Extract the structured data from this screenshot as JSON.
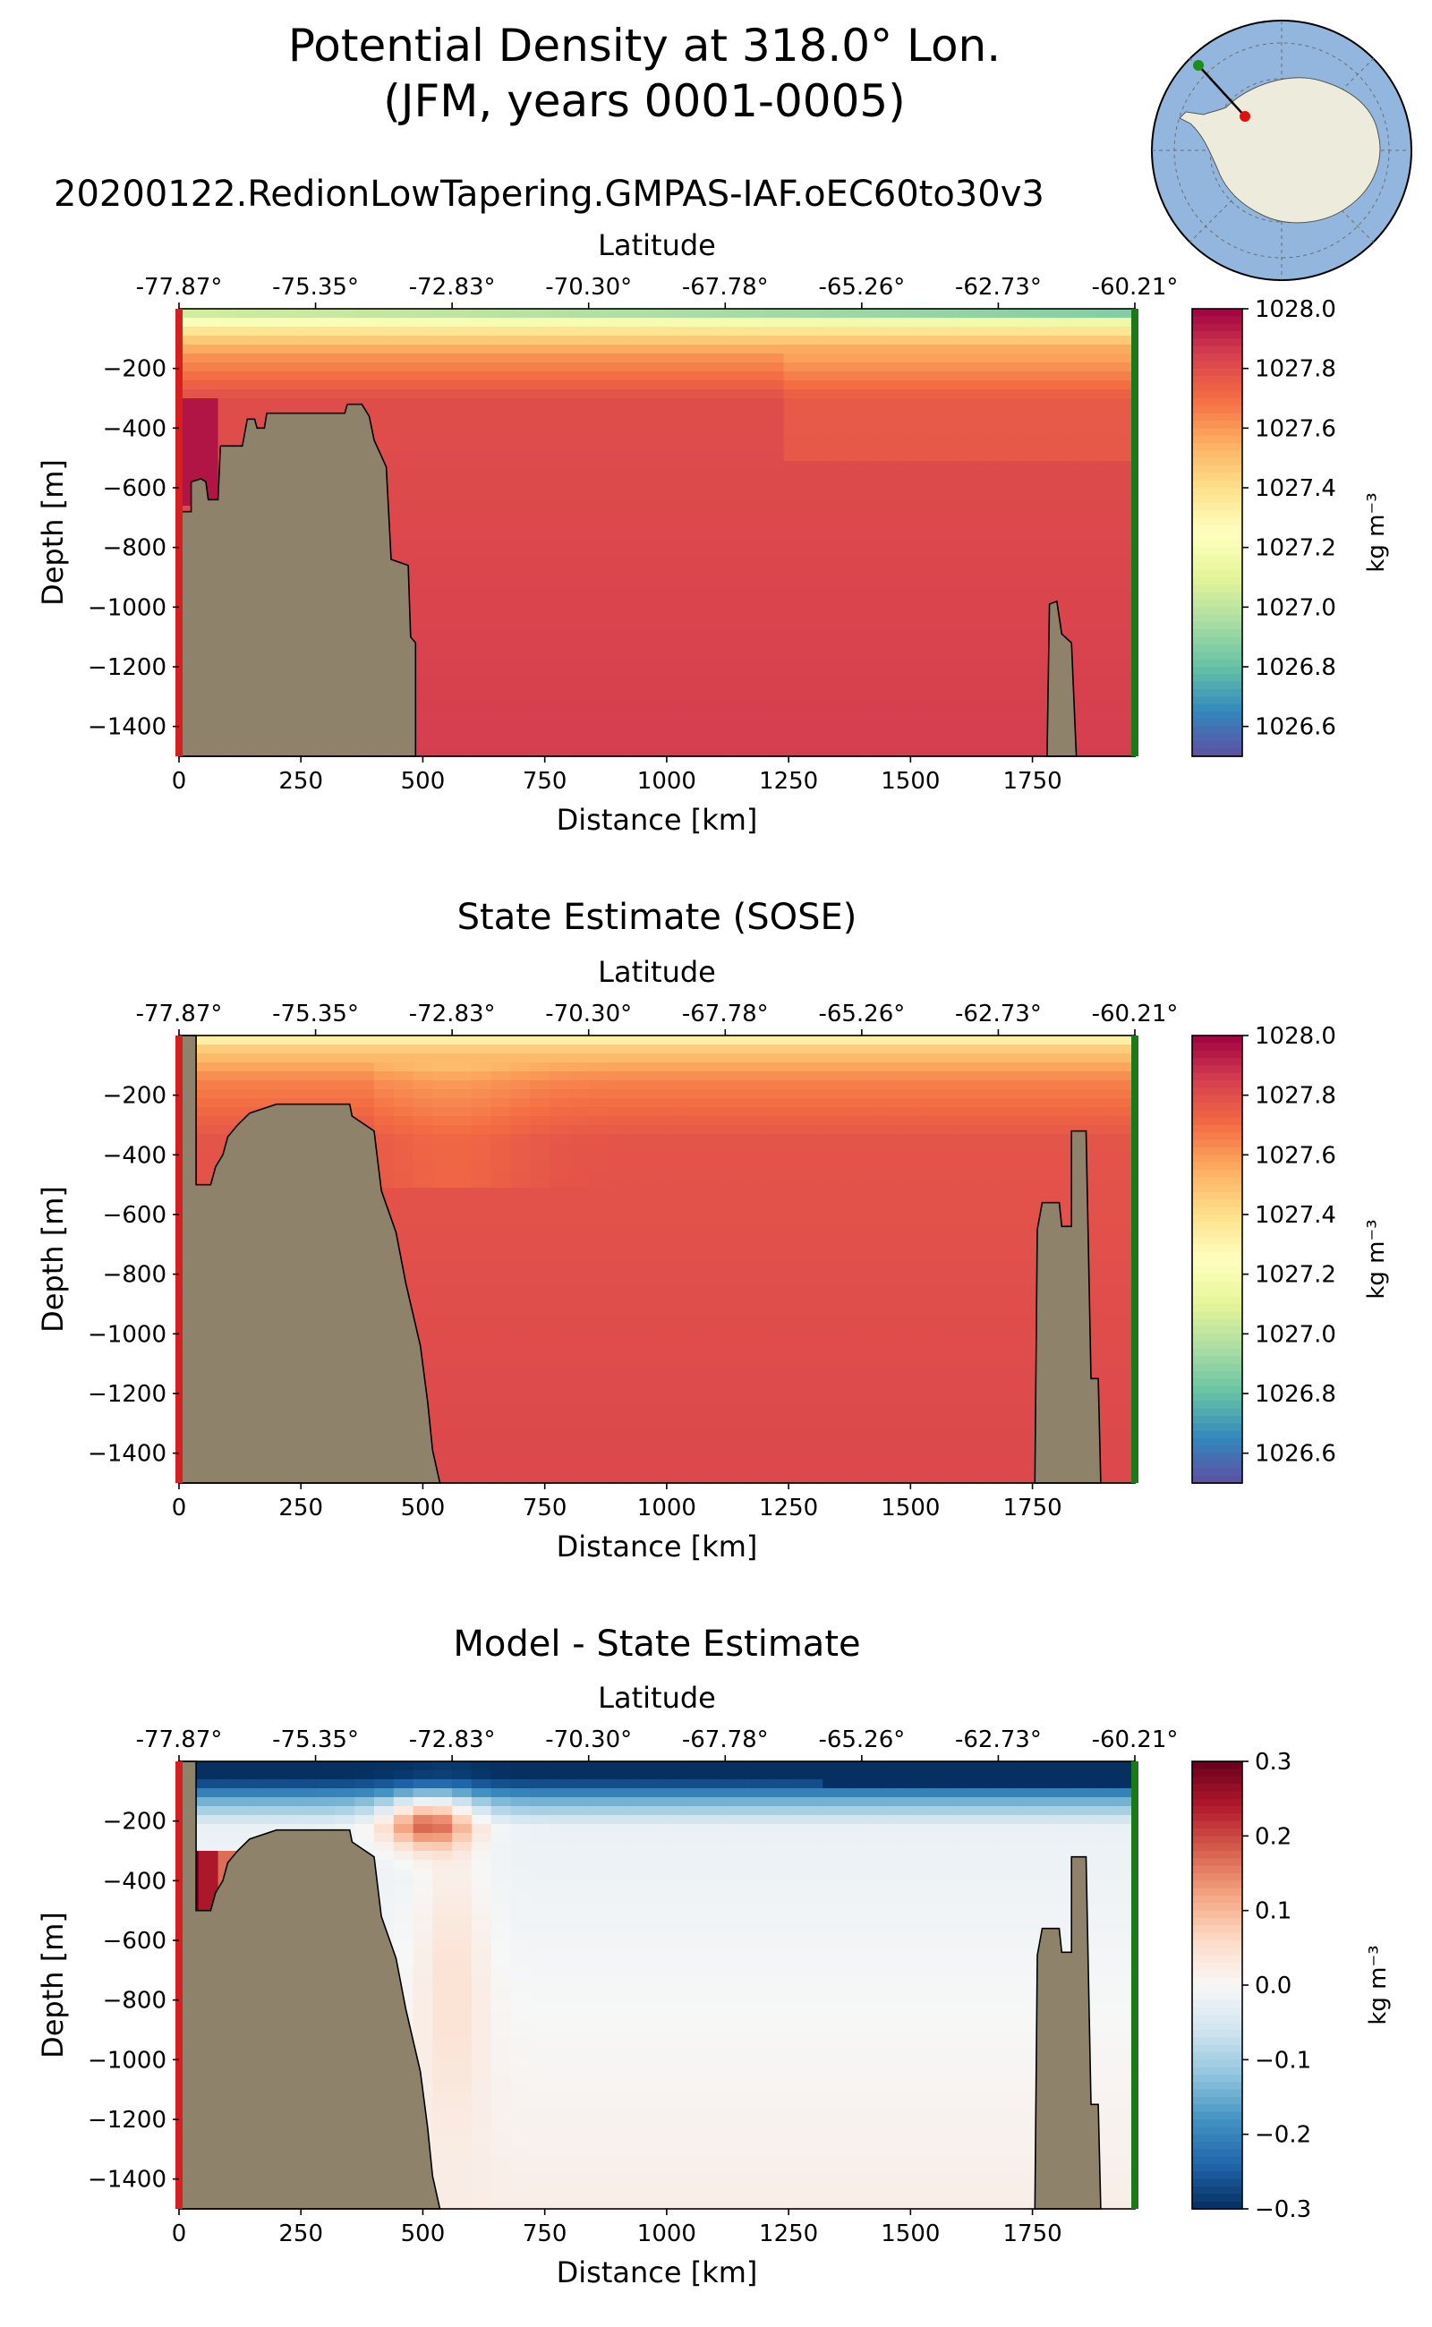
{
  "figure": {
    "title_line1": "Potential Density at 318.0° Lon.",
    "title_line2": "(JFM, years 0001-0005)",
    "run_name": "20200122.RedionLowTapering.GMPAS-IAF.oEC60to30v3"
  },
  "inset_map": {
    "description_icon": "antarctica-polar-map",
    "ocean_color": "#93b6df",
    "land_color": "#ecebdc",
    "start_marker_color": "#1a8f1a",
    "end_marker_color": "#e01010"
  },
  "colors": {
    "bathymetry": "#8f826a",
    "left_edge_line": "#d62020",
    "right_edge_line": "#1a7a1a"
  },
  "chart_data": [
    {
      "type": "heatmap",
      "title": "",
      "xlabel": "Distance [km]",
      "top_xlabel": "Latitude",
      "ylabel": "Depth [m]",
      "xlim": [
        0,
        1960
      ],
      "ylim": [
        -1500,
        0
      ],
      "xticks": [
        0,
        250,
        500,
        750,
        1000,
        1250,
        1500,
        1750
      ],
      "xtick_labels": [
        "0",
        "250",
        "500",
        "750",
        "1000",
        "1250",
        "1500",
        "1750"
      ],
      "yticks": [
        -200,
        -400,
        -600,
        -800,
        -1000,
        -1200,
        -1400
      ],
      "ytick_labels": [
        "−200",
        "−400",
        "−600",
        "−800",
        "−1000",
        "−1200",
        "−1400"
      ],
      "latitude_ticks": [
        0,
        280,
        560,
        840,
        1120,
        1400,
        1680,
        1960
      ],
      "latitude_labels": [
        "-77.87°",
        "-75.35°",
        "-72.83°",
        "-70.30°",
        "-67.78°",
        "-65.26°",
        "-62.73°",
        "-60.21°"
      ],
      "colormap": "Spectral_r",
      "colorbar": {
        "range": [
          1026.5,
          1028.0
        ],
        "ticks": [
          1028.0,
          1027.8,
          1027.6,
          1027.4,
          1027.2,
          1027.0,
          1026.8,
          1026.6
        ],
        "tick_labels": [
          "1028.0",
          "1027.8",
          "1027.6",
          "1027.4",
          "1027.2",
          "1027.0",
          "1026.8",
          "1026.6"
        ],
        "label": "kg m⁻³"
      },
      "field": {
        "background_value": 1027.82,
        "profile": [
          {
            "depth": 0,
            "value": 1026.95
          },
          {
            "depth": -30,
            "value": 1027.15
          },
          {
            "depth": -80,
            "value": 1027.4
          },
          {
            "depth": -150,
            "value": 1027.6
          },
          {
            "depth": -300,
            "value": 1027.8
          },
          {
            "depth": -1500,
            "value": 1027.85
          }
        ],
        "top_surface_value_east": 1026.7,
        "shelf_dense_value": 1027.95
      },
      "bathymetry_outline": [
        [
          0,
          -680
        ],
        [
          25,
          -680
        ],
        [
          25,
          -580
        ],
        [
          45,
          -570
        ],
        [
          55,
          -580
        ],
        [
          60,
          -640
        ],
        [
          80,
          -640
        ],
        [
          85,
          -460
        ],
        [
          130,
          -460
        ],
        [
          140,
          -370
        ],
        [
          155,
          -370
        ],
        [
          160,
          -400
        ],
        [
          175,
          -400
        ],
        [
          180,
          -350
        ],
        [
          340,
          -350
        ],
        [
          345,
          -320
        ],
        [
          375,
          -320
        ],
        [
          390,
          -360
        ],
        [
          400,
          -440
        ],
        [
          425,
          -530
        ],
        [
          435,
          -840
        ],
        [
          470,
          -860
        ],
        [
          475,
          -1100
        ],
        [
          485,
          -1120
        ],
        [
          485,
          -1500
        ],
        [
          0,
          -1500
        ]
      ],
      "seamount_outline": [
        [
          1780,
          -1500
        ],
        [
          1785,
          -990
        ],
        [
          1800,
          -980
        ],
        [
          1810,
          -1090
        ],
        [
          1830,
          -1120
        ],
        [
          1840,
          -1500
        ]
      ]
    },
    {
      "type": "heatmap",
      "title": "State Estimate (SOSE)",
      "xlabel": "Distance [km]",
      "top_xlabel": "Latitude",
      "ylabel": "Depth [m]",
      "xlim": [
        0,
        1960
      ],
      "ylim": [
        -1500,
        0
      ],
      "xticks": [
        0,
        250,
        500,
        750,
        1000,
        1250,
        1500,
        1750
      ],
      "xtick_labels": [
        "0",
        "250",
        "500",
        "750",
        "1000",
        "1250",
        "1500",
        "1750"
      ],
      "yticks": [
        -200,
        -400,
        -600,
        -800,
        -1000,
        -1200,
        -1400
      ],
      "ytick_labels": [
        "−200",
        "−400",
        "−600",
        "−800",
        "−1000",
        "−1200",
        "−1400"
      ],
      "latitude_ticks": [
        0,
        280,
        560,
        840,
        1120,
        1400,
        1680,
        1960
      ],
      "latitude_labels": [
        "-77.87°",
        "-75.35°",
        "-72.83°",
        "-70.30°",
        "-67.78°",
        "-65.26°",
        "-62.73°",
        "-60.21°"
      ],
      "colormap": "Spectral_r",
      "colorbar": {
        "range": [
          1026.5,
          1028.0
        ],
        "ticks": [
          1028.0,
          1027.8,
          1027.6,
          1027.4,
          1027.2,
          1027.0,
          1026.8,
          1026.6
        ],
        "tick_labels": [
          "1028.0",
          "1027.8",
          "1027.6",
          "1027.4",
          "1027.2",
          "1027.0",
          "1026.8",
          "1026.6"
        ],
        "label": "kg m⁻³"
      },
      "field": {
        "background_value": 1027.8,
        "profile": [
          {
            "depth": 0,
            "value": 1027.25
          },
          {
            "depth": -40,
            "value": 1027.45
          },
          {
            "depth": -150,
            "value": 1027.65
          },
          {
            "depth": -350,
            "value": 1027.78
          },
          {
            "depth": -1500,
            "value": 1027.82
          }
        ],
        "top_surface_value_east": 1027.25,
        "shelf_dense_value": 1027.7
      },
      "bathymetry_outline": [
        [
          0,
          -1500
        ],
        [
          0,
          0
        ],
        [
          35,
          0
        ],
        [
          35,
          -500
        ],
        [
          65,
          -500
        ],
        [
          75,
          -440
        ],
        [
          90,
          -400
        ],
        [
          100,
          -340
        ],
        [
          120,
          -300
        ],
        [
          145,
          -260
        ],
        [
          200,
          -230
        ],
        [
          350,
          -230
        ],
        [
          355,
          -270
        ],
        [
          400,
          -320
        ],
        [
          415,
          -520
        ],
        [
          445,
          -660
        ],
        [
          465,
          -830
        ],
        [
          495,
          -1040
        ],
        [
          510,
          -1230
        ],
        [
          520,
          -1390
        ],
        [
          535,
          -1500
        ]
      ],
      "seamount_outline": [
        [
          1755,
          -1500
        ],
        [
          1760,
          -650
        ],
        [
          1770,
          -560
        ],
        [
          1805,
          -560
        ],
        [
          1810,
          -640
        ],
        [
          1830,
          -640
        ],
        [
          1830,
          -320
        ],
        [
          1860,
          -320
        ],
        [
          1870,
          -1150
        ],
        [
          1885,
          -1150
        ],
        [
          1890,
          -1500
        ]
      ]
    },
    {
      "type": "heatmap",
      "title": "Model - State Estimate",
      "xlabel": "Distance [km]",
      "top_xlabel": "Latitude",
      "ylabel": "Depth [m]",
      "xlim": [
        0,
        1960
      ],
      "ylim": [
        -1500,
        0
      ],
      "xticks": [
        0,
        250,
        500,
        750,
        1000,
        1250,
        1500,
        1750
      ],
      "xtick_labels": [
        "0",
        "250",
        "500",
        "750",
        "1000",
        "1250",
        "1500",
        "1750"
      ],
      "yticks": [
        -200,
        -400,
        -600,
        -800,
        -1000,
        -1200,
        -1400
      ],
      "ytick_labels": [
        "−200",
        "−400",
        "−600",
        "−800",
        "−1000",
        "−1200",
        "−1400"
      ],
      "latitude_ticks": [
        0,
        280,
        560,
        840,
        1120,
        1400,
        1680,
        1960
      ],
      "latitude_labels": [
        "-77.87°",
        "-75.35°",
        "-72.83°",
        "-70.30°",
        "-67.78°",
        "-65.26°",
        "-62.73°",
        "-60.21°"
      ],
      "colormap": "RdBu_r",
      "colorbar": {
        "range": [
          -0.3,
          0.3
        ],
        "ticks": [
          0.3,
          0.2,
          0.1,
          0.0,
          -0.1,
          -0.2,
          -0.3
        ],
        "tick_labels": [
          "0.3",
          "0.2",
          "0.1",
          "0.0",
          "−0.1",
          "−0.2",
          "−0.3"
        ],
        "label": "kg m⁻³"
      },
      "field": {
        "background_value": 0.02,
        "profile": [
          {
            "depth": 0,
            "value": -0.3
          },
          {
            "depth": -60,
            "value": -0.3
          },
          {
            "depth": -130,
            "value": -0.15
          },
          {
            "depth": -220,
            "value": -0.02
          },
          {
            "depth": -1500,
            "value": 0.02
          }
        ],
        "warm_anomaly_value": 0.2,
        "shelf_anomaly_value": 0.3
      },
      "bathymetry_outline": [
        [
          0,
          -1500
        ],
        [
          0,
          0
        ],
        [
          35,
          0
        ],
        [
          35,
          -500
        ],
        [
          65,
          -500
        ],
        [
          75,
          -440
        ],
        [
          90,
          -400
        ],
        [
          100,
          -340
        ],
        [
          120,
          -300
        ],
        [
          145,
          -260
        ],
        [
          200,
          -230
        ],
        [
          350,
          -230
        ],
        [
          355,
          -270
        ],
        [
          400,
          -320
        ],
        [
          415,
          -520
        ],
        [
          445,
          -660
        ],
        [
          465,
          -830
        ],
        [
          495,
          -1040
        ],
        [
          510,
          -1230
        ],
        [
          520,
          -1390
        ],
        [
          535,
          -1500
        ]
      ],
      "seamount_outline": [
        [
          1755,
          -1500
        ],
        [
          1760,
          -650
        ],
        [
          1770,
          -560
        ],
        [
          1805,
          -560
        ],
        [
          1810,
          -640
        ],
        [
          1830,
          -640
        ],
        [
          1830,
          -320
        ],
        [
          1860,
          -320
        ],
        [
          1870,
          -1150
        ],
        [
          1885,
          -1150
        ],
        [
          1890,
          -1500
        ]
      ]
    }
  ]
}
